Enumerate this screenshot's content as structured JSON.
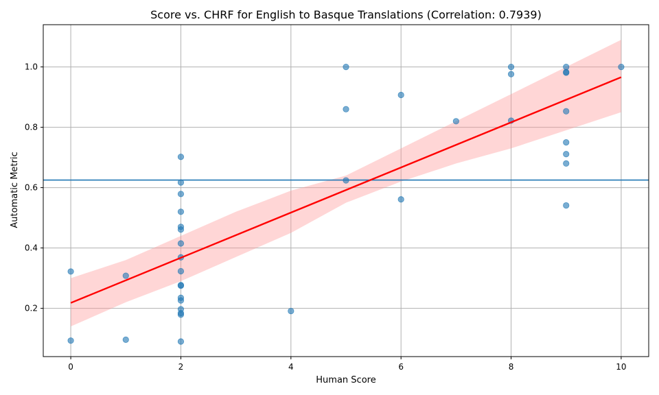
{
  "chart_data": {
    "type": "scatter",
    "title": "Score vs. CHRF for English to Basque Translations (Correlation: 0.7939)",
    "xlabel": "Human Score",
    "ylabel": "Automatic Metric",
    "xlim": [
      -0.5,
      10.5
    ],
    "ylim": [
      0.04,
      1.14
    ],
    "xticks": [
      0,
      2,
      4,
      6,
      8,
      10
    ],
    "yticks": [
      0.2,
      0.4,
      0.6,
      0.8,
      1.0
    ],
    "grid": true,
    "colors": {
      "points": "#1f77b4",
      "fit_line": "#ff0000",
      "confidence_band": "#ff9999",
      "reference_line": "#1f77b4",
      "grid": "#b0b0b0"
    },
    "points": [
      {
        "x": 0,
        "y": 0.322
      },
      {
        "x": 0,
        "y": 0.093
      },
      {
        "x": 1,
        "y": 0.308
      },
      {
        "x": 1,
        "y": 0.096
      },
      {
        "x": 2,
        "y": 0.702
      },
      {
        "x": 2,
        "y": 0.617
      },
      {
        "x": 2,
        "y": 0.579
      },
      {
        "x": 2,
        "y": 0.52
      },
      {
        "x": 2,
        "y": 0.47
      },
      {
        "x": 2,
        "y": 0.461
      },
      {
        "x": 2,
        "y": 0.415
      },
      {
        "x": 2,
        "y": 0.369
      },
      {
        "x": 2,
        "y": 0.323
      },
      {
        "x": 2,
        "y": 0.277
      },
      {
        "x": 2,
        "y": 0.275
      },
      {
        "x": 2,
        "y": 0.235
      },
      {
        "x": 2,
        "y": 0.226
      },
      {
        "x": 2,
        "y": 0.197
      },
      {
        "x": 2,
        "y": 0.184
      },
      {
        "x": 2,
        "y": 0.179
      },
      {
        "x": 2,
        "y": 0.09
      },
      {
        "x": 4,
        "y": 0.191
      },
      {
        "x": 5,
        "y": 1.0
      },
      {
        "x": 5,
        "y": 0.86
      },
      {
        "x": 5,
        "y": 0.624
      },
      {
        "x": 6,
        "y": 0.907
      },
      {
        "x": 6,
        "y": 0.561
      },
      {
        "x": 7,
        "y": 0.82
      },
      {
        "x": 8,
        "y": 1.0
      },
      {
        "x": 8,
        "y": 0.976
      },
      {
        "x": 8,
        "y": 0.822
      },
      {
        "x": 9,
        "y": 1.0
      },
      {
        "x": 9,
        "y": 0.983
      },
      {
        "x": 9,
        "y": 0.981
      },
      {
        "x": 9,
        "y": 0.853
      },
      {
        "x": 9,
        "y": 0.75
      },
      {
        "x": 9,
        "y": 0.711
      },
      {
        "x": 9,
        "y": 0.68
      },
      {
        "x": 9,
        "y": 0.541
      },
      {
        "x": 10,
        "y": 1.0
      }
    ],
    "regression": {
      "x": [
        0,
        10
      ],
      "y": [
        0.218,
        0.966
      ]
    },
    "confidence_band": {
      "x": [
        0,
        1,
        2,
        3,
        4,
        5,
        6,
        7,
        8,
        9,
        10
      ],
      "upper": [
        0.3,
        0.36,
        0.44,
        0.52,
        0.59,
        0.64,
        0.73,
        0.82,
        0.91,
        1.0,
        1.09
      ],
      "lower": [
        0.14,
        0.22,
        0.29,
        0.37,
        0.45,
        0.55,
        0.62,
        0.68,
        0.73,
        0.79,
        0.85
      ]
    },
    "reference_line": {
      "y": 0.625
    }
  }
}
